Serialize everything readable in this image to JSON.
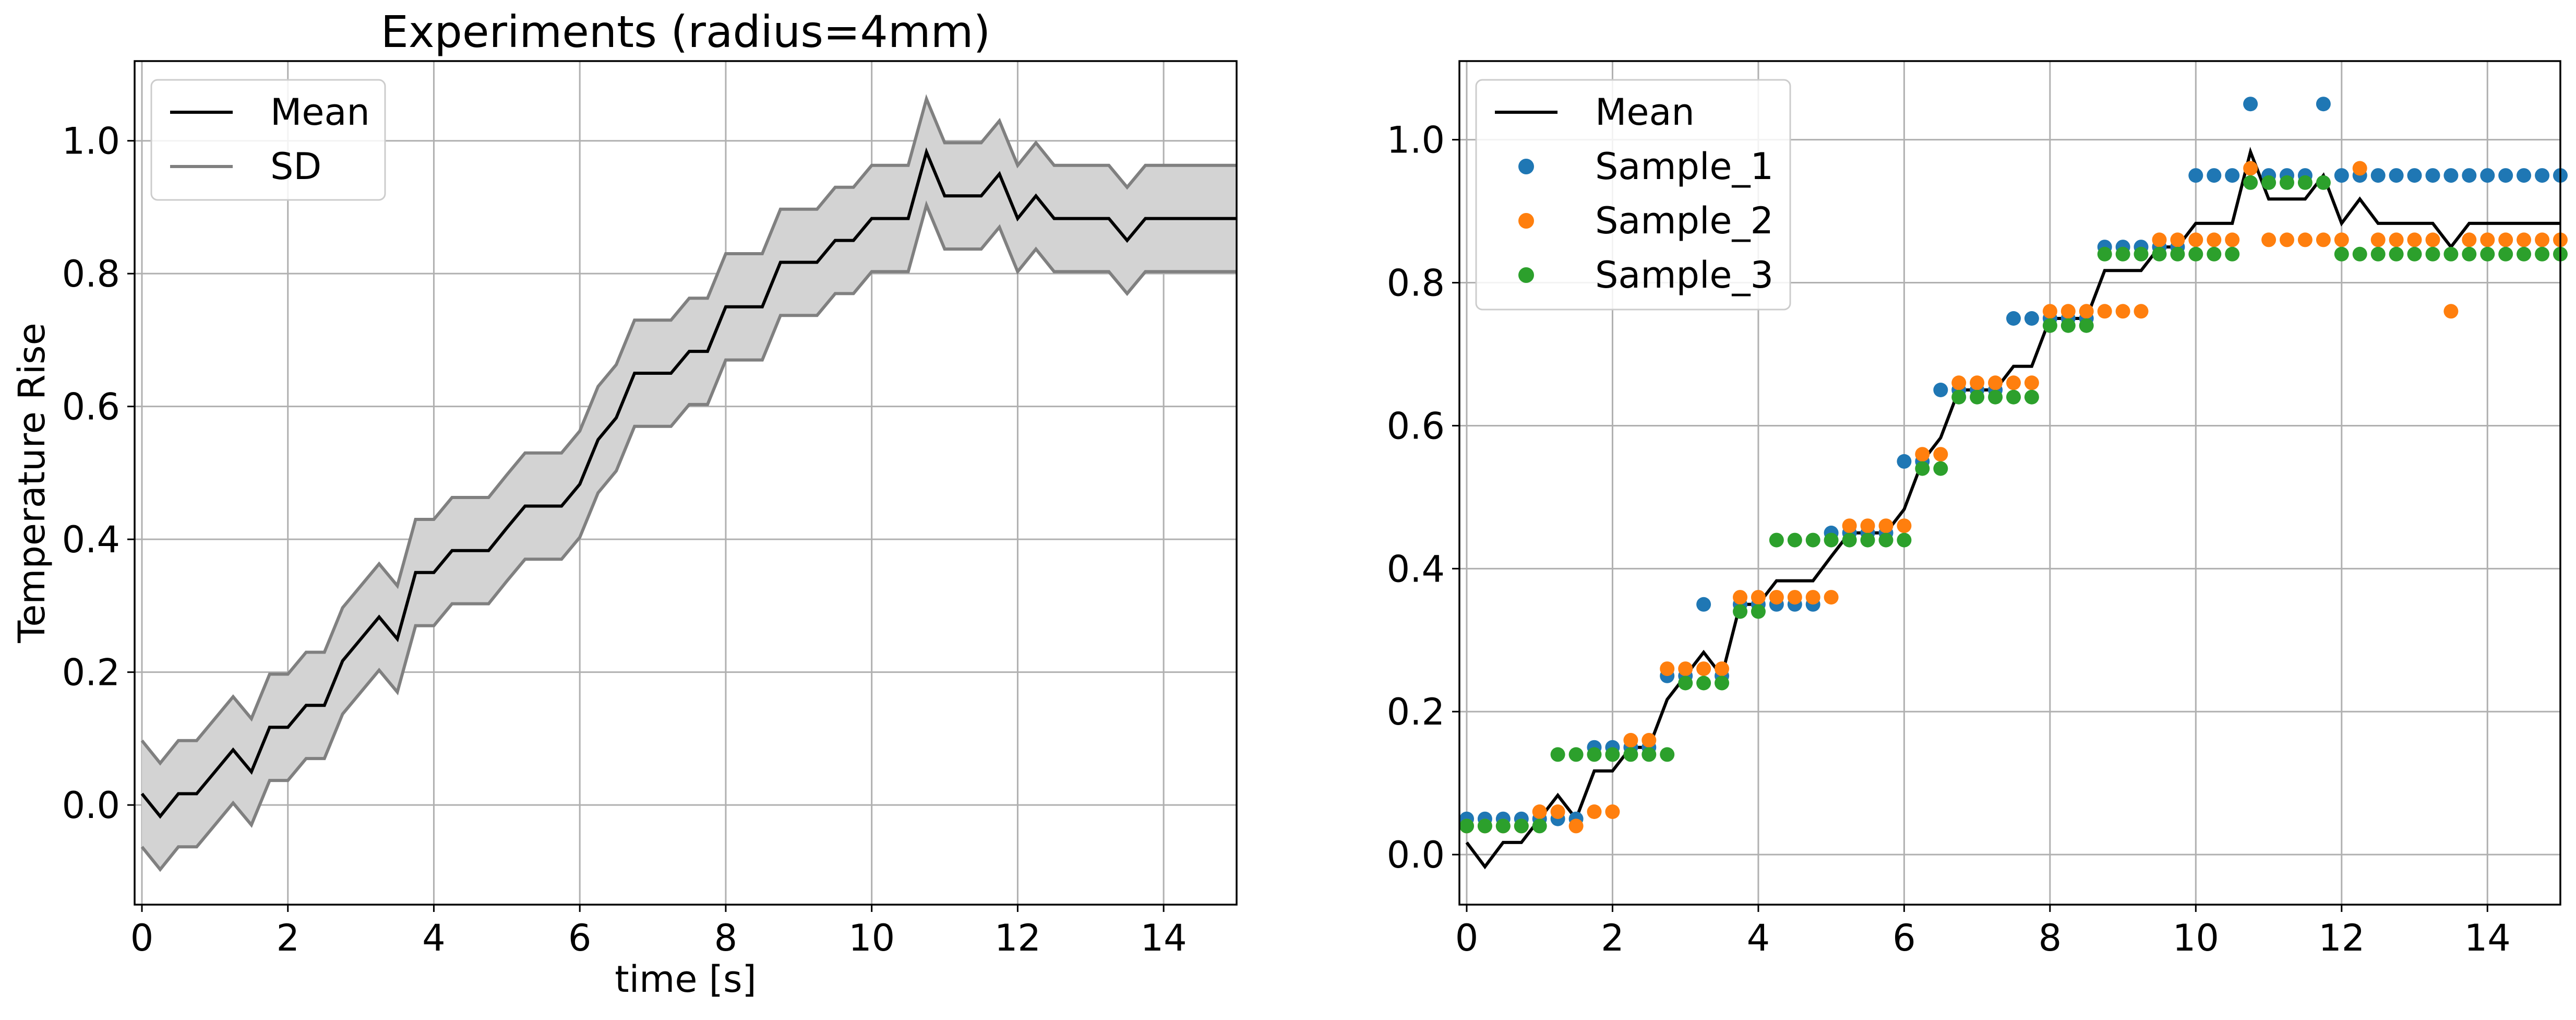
{
  "chart_data": [
    {
      "type": "line",
      "title": "Experiments (radius=4mm)",
      "xlabel": "time [s]",
      "ylabel": "Temperature Rise",
      "xlim": [
        -0.1,
        15.0
      ],
      "ylim": [
        -0.15,
        1.12
      ],
      "xticks": [
        0,
        2,
        4,
        6,
        8,
        10,
        12,
        14
      ],
      "xtick_labels": [
        "0",
        "2",
        "4",
        "6",
        "8",
        "10",
        "12",
        "14"
      ],
      "yticks": [
        0.0,
        0.2,
        0.4,
        0.6,
        0.8,
        1.0
      ],
      "ytick_labels": [
        "0.0",
        "0.2",
        "0.4",
        "0.6",
        "0.8",
        "1.0"
      ],
      "grid": true,
      "legend_position": "top-left",
      "legend": [
        "Mean",
        "SD"
      ],
      "sd": 0.08,
      "colors": {
        "mean": "#000000",
        "sd_line": "#808080",
        "sd_fill": "#d3d3d3"
      },
      "x": [
        0,
        0.25,
        0.5,
        0.75,
        1.0,
        1.25,
        1.5,
        1.75,
        2.0,
        2.25,
        2.5,
        2.75,
        3.0,
        3.25,
        3.5,
        3.75,
        4.0,
        4.25,
        4.5,
        4.75,
        5.0,
        5.25,
        5.5,
        5.75,
        6.0,
        6.25,
        6.5,
        6.75,
        7.0,
        7.25,
        7.5,
        7.75,
        8.0,
        8.25,
        8.5,
        8.75,
        9.0,
        9.25,
        9.5,
        9.75,
        10.0,
        10.25,
        10.5,
        10.75,
        11.0,
        11.25,
        11.5,
        11.75,
        12.0,
        12.25,
        12.5,
        12.75,
        13.0,
        13.25,
        13.5,
        13.75,
        14.0,
        14.25,
        14.5,
        14.75,
        15.0
      ],
      "mean": [
        0.017,
        -0.017,
        0.017,
        0.017,
        0.05,
        0.083,
        0.05,
        0.117,
        0.117,
        0.15,
        0.15,
        0.217,
        0.25,
        0.283,
        0.25,
        0.35,
        0.35,
        0.383,
        0.383,
        0.383,
        0.417,
        0.45,
        0.45,
        0.45,
        0.483,
        0.55,
        0.583,
        0.65,
        0.65,
        0.65,
        0.683,
        0.683,
        0.75,
        0.75,
        0.75,
        0.817,
        0.817,
        0.817,
        0.85,
        0.85,
        0.883,
        0.883,
        0.883,
        0.983,
        0.917,
        0.917,
        0.917,
        0.95,
        0.883,
        0.917,
        0.883,
        0.883,
        0.883,
        0.883,
        0.85,
        0.883,
        0.883,
        0.883,
        0.883,
        0.883,
        0.883
      ]
    },
    {
      "type": "scatter",
      "xlim": [
        -0.1,
        15.0
      ],
      "ylim": [
        -0.07,
        1.11
      ],
      "xticks": [
        0,
        2,
        4,
        6,
        8,
        10,
        12,
        14
      ],
      "xtick_labels": [
        "0",
        "2",
        "4",
        "6",
        "8",
        "10",
        "12",
        "14"
      ],
      "yticks": [
        0.0,
        0.2,
        0.4,
        0.6,
        0.8,
        1.0
      ],
      "ytick_labels": [
        "0.0",
        "0.2",
        "0.4",
        "0.6",
        "0.8",
        "1.0"
      ],
      "grid": true,
      "legend_position": "top-left",
      "legend": [
        "Mean",
        "Sample_1",
        "Sample_2",
        "Sample_3"
      ],
      "line": {
        "name": "Mean",
        "color": "#000000"
      },
      "series": [
        {
          "name": "Sample_1",
          "color": "#1f77b4",
          "x": [
            0,
            0.25,
            0.5,
            0.75,
            1.0,
            1.25,
            1.5,
            1.75,
            2.0,
            2.25,
            2.5,
            2.75,
            3.0,
            3.25,
            3.5,
            3.75,
            4.0,
            4.25,
            4.5,
            4.75,
            5.0,
            5.25,
            5.5,
            5.75,
            6.0,
            6.25,
            6.5,
            6.75,
            7.0,
            7.25,
            7.5,
            7.75,
            8.0,
            8.25,
            8.5,
            8.75,
            9.0,
            9.25,
            9.5,
            9.75,
            10.0,
            10.25,
            10.5,
            10.75,
            11.0,
            11.25,
            11.5,
            11.75,
            12.0,
            12.25,
            12.5,
            12.75,
            13.0,
            13.25,
            13.5,
            13.75,
            14.0,
            14.25,
            14.5,
            14.75,
            15.0
          ],
          "y": [
            0.05,
            0.05,
            0.05,
            0.05,
            0.05,
            0.05,
            0.05,
            0.15,
            0.15,
            0.15,
            0.15,
            0.25,
            0.25,
            0.35,
            0.25,
            0.35,
            0.35,
            0.35,
            0.35,
            0.35,
            0.45,
            0.45,
            0.45,
            0.45,
            0.55,
            0.55,
            0.65,
            0.65,
            0.65,
            0.65,
            0.75,
            0.75,
            0.75,
            0.75,
            0.75,
            0.85,
            0.85,
            0.85,
            0.85,
            0.85,
            0.95,
            0.95,
            0.95,
            1.05,
            0.95,
            0.95,
            0.95,
            1.05,
            0.95,
            0.95,
            0.95,
            0.95,
            0.95,
            0.95,
            0.95,
            0.95,
            0.95,
            0.95,
            0.95,
            0.95,
            0.95
          ]
        },
        {
          "name": "Sample_2",
          "color": "#ff7f0e",
          "x": [
            0,
            0.25,
            0.5,
            0.75,
            1.0,
            1.25,
            1.5,
            1.75,
            2.0,
            2.25,
            2.5,
            2.75,
            3.0,
            3.25,
            3.5,
            3.75,
            4.0,
            4.25,
            4.5,
            4.75,
            5.0,
            5.25,
            5.5,
            5.75,
            6.0,
            6.25,
            6.5,
            6.75,
            7.0,
            7.25,
            7.5,
            7.75,
            8.0,
            8.25,
            8.5,
            8.75,
            9.0,
            9.25,
            9.5,
            9.75,
            10.0,
            10.25,
            10.5,
            10.75,
            11.0,
            11.25,
            11.5,
            11.75,
            12.0,
            12.25,
            12.5,
            12.75,
            13.0,
            13.25,
            13.5,
            13.75,
            14.0,
            14.25,
            14.5,
            14.75,
            15.0
          ],
          "y": [
            0.04,
            0.04,
            0.04,
            0.04,
            0.06,
            0.06,
            0.04,
            0.06,
            0.06,
            0.16,
            0.16,
            0.26,
            0.26,
            0.26,
            0.26,
            0.36,
            0.36,
            0.36,
            0.36,
            0.36,
            0.36,
            0.46,
            0.46,
            0.46,
            0.46,
            0.56,
            0.56,
            0.66,
            0.66,
            0.66,
            0.66,
            0.66,
            0.76,
            0.76,
            0.76,
            0.76,
            0.76,
            0.76,
            0.86,
            0.86,
            0.86,
            0.86,
            0.86,
            0.96,
            0.86,
            0.86,
            0.86,
            0.86,
            0.86,
            0.96,
            0.86,
            0.86,
            0.86,
            0.86,
            0.76,
            0.86,
            0.86,
            0.86,
            0.86,
            0.86,
            0.86
          ]
        },
        {
          "name": "Sample_3",
          "color": "#2ca02c",
          "x": [
            0,
            0.25,
            0.5,
            0.75,
            1.0,
            1.25,
            1.5,
            1.75,
            2.0,
            2.25,
            2.5,
            2.75,
            3.0,
            3.25,
            3.5,
            3.75,
            4.0,
            4.25,
            4.5,
            4.75,
            5.0,
            5.25,
            5.5,
            5.75,
            6.0,
            6.25,
            6.5,
            6.75,
            7.0,
            7.25,
            7.5,
            7.75,
            8.0,
            8.25,
            8.5,
            8.75,
            9.0,
            9.25,
            9.5,
            9.75,
            10.0,
            10.25,
            10.5,
            10.75,
            11.0,
            11.25,
            11.5,
            11.75,
            12.0,
            12.25,
            12.5,
            12.75,
            13.0,
            13.25,
            13.5,
            13.75,
            14.0,
            14.25,
            14.5,
            14.75,
            15.0
          ],
          "y": [
            0.04,
            0.04,
            0.04,
            0.04,
            0.04,
            0.14,
            0.14,
            0.14,
            0.14,
            0.14,
            0.14,
            0.14,
            0.24,
            0.24,
            0.24,
            0.34,
            0.34,
            0.44,
            0.44,
            0.44,
            0.44,
            0.44,
            0.44,
            0.44,
            0.44,
            0.54,
            0.54,
            0.64,
            0.64,
            0.64,
            0.64,
            0.64,
            0.74,
            0.74,
            0.74,
            0.84,
            0.84,
            0.84,
            0.84,
            0.84,
            0.84,
            0.84,
            0.84,
            0.94,
            0.94,
            0.94,
            0.94,
            0.94,
            0.84,
            0.84,
            0.84,
            0.84,
            0.84,
            0.84,
            0.84,
            0.84,
            0.84,
            0.84,
            0.84,
            0.84,
            0.84
          ]
        }
      ]
    }
  ]
}
